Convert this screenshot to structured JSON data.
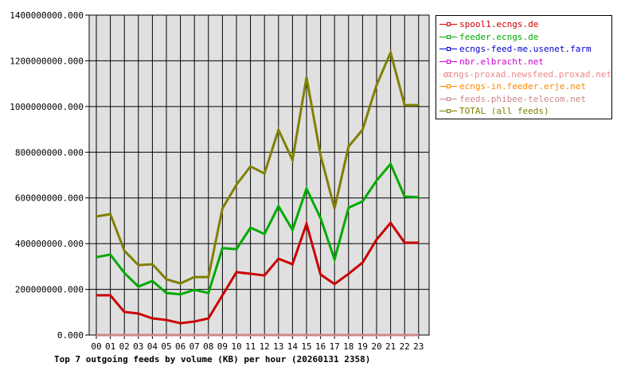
{
  "chart_data": {
    "type": "line",
    "title": "Top 7 outgoing feeds by volume (KB) per hour (20260131 2358)",
    "xlabel": "",
    "ylabel": "",
    "ylim": [
      0,
      1400000000
    ],
    "yticks": [
      "0.000",
      "200000000.000",
      "400000000.000",
      "600000000.000",
      "800000000.000",
      "1000000000.000",
      "1200000000.000",
      "1400000000.000"
    ],
    "categories": [
      "00",
      "01",
      "02",
      "03",
      "04",
      "05",
      "06",
      "07",
      "08",
      "09",
      "10",
      "11",
      "12",
      "13",
      "14",
      "15",
      "16",
      "17",
      "18",
      "19",
      "20",
      "21",
      "22",
      "23"
    ],
    "grid": true,
    "legend_position": "right",
    "series": [
      {
        "name": "spool1.ecngs.de",
        "color": "#cc0000",
        "values": [
          174000000,
          174000000,
          101000000,
          94000000,
          73000000,
          66000000,
          52000000,
          59000000,
          73000000,
          174000000,
          275000000,
          268000000,
          261000000,
          334000000,
          310000000,
          487000000,
          265000000,
          223000000,
          268000000,
          317000000,
          418000000,
          491000000,
          404000000,
          404000000
        ]
      },
      {
        "name": "feeder.ecngs.de",
        "color": "#00aa00",
        "values": [
          341000000,
          352000000,
          272000000,
          212000000,
          237000000,
          184000000,
          178000000,
          198000000,
          184000000,
          380000000,
          376000000,
          470000000,
          442000000,
          564000000,
          460000000,
          641000000,
          512000000,
          331000000,
          557000000,
          585000000,
          676000000,
          749000000,
          606000000,
          603000000
        ]
      },
      {
        "name": "ecngs-feed-me.usenet.farm",
        "color": "#0000cc",
        "values": [
          0,
          0,
          0,
          0,
          0,
          0,
          0,
          0,
          0,
          0,
          0,
          0,
          0,
          0,
          0,
          0,
          0,
          0,
          0,
          0,
          0,
          0,
          0,
          0
        ]
      },
      {
        "name": "nbr.elbracht.net",
        "color": "#cc00cc",
        "values": [
          0,
          0,
          0,
          0,
          0,
          0,
          0,
          0,
          0,
          0,
          0,
          0,
          0,
          0,
          0,
          0,
          0,
          0,
          0,
          0,
          0,
          0,
          0,
          0
        ]
      },
      {
        "name": "ecngs-proxad.newsfeed.proxad.net",
        "color": "#ee8888",
        "values": [
          0,
          0,
          0,
          0,
          0,
          0,
          0,
          0,
          0,
          0,
          0,
          0,
          0,
          0,
          0,
          0,
          0,
          0,
          0,
          0,
          0,
          0,
          0,
          0
        ]
      },
      {
        "name": "ecngs-in.feeder.erje.net",
        "color": "#ff8800",
        "values": [
          0,
          0,
          0,
          0,
          0,
          0,
          0,
          0,
          0,
          0,
          0,
          0,
          0,
          0,
          0,
          0,
          0,
          0,
          0,
          0,
          0,
          0,
          0,
          0
        ]
      },
      {
        "name": "feeds.phibee-telecom.net",
        "color": "#cc8888",
        "values": [
          0,
          0,
          0,
          0,
          0,
          0,
          0,
          0,
          0,
          0,
          0,
          0,
          0,
          0,
          0,
          0,
          0,
          0,
          0,
          0,
          0,
          0,
          0,
          0
        ]
      },
      {
        "name": "TOTAL (all feeds)",
        "color": "#808000",
        "values": [
          519000000,
          529000000,
          369000000,
          306000000,
          310000000,
          244000000,
          226000000,
          254000000,
          254000000,
          554000000,
          658000000,
          738000000,
          707000000,
          898000000,
          766000000,
          1128000000,
          787000000,
          554000000,
          825000000,
          898000000,
          1094000000,
          1236000000,
          1006000000,
          1006000000
        ]
      }
    ]
  }
}
